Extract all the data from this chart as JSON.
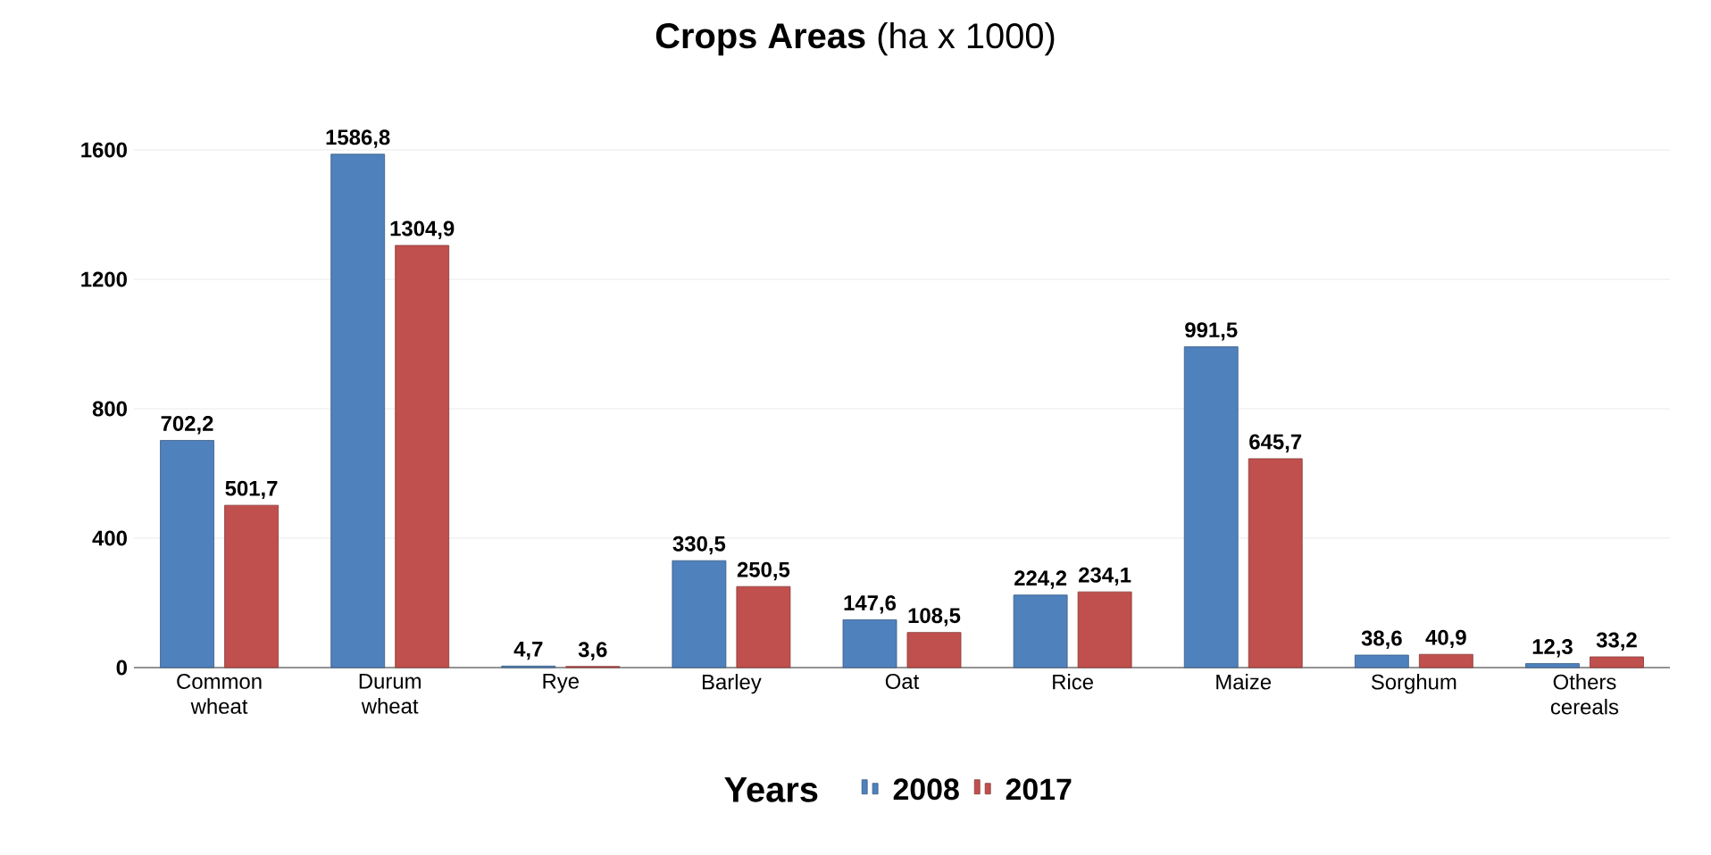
{
  "chart_data": {
    "type": "bar",
    "title": "**Crops Areas** (ha x 1000)",
    "categories": [
      "Common wheat",
      "Durum wheat",
      "Rye",
      "Barley",
      "Oat",
      "Rice",
      "Maize",
      "Sorghum",
      "Others cereals"
    ],
    "series": [
      {
        "name": "2008",
        "color": "#4f81bd",
        "values": [
          702.2,
          1586.8,
          4.7,
          330.5,
          147.6,
          224.2,
          991.5,
          38.6,
          12.3
        ],
        "value_labels": [
          "702,2",
          "1586,8",
          "4,7",
          "330,5",
          "147,6",
          "224,2",
          "991,5",
          "38,6",
          "12,3"
        ]
      },
      {
        "name": "2017",
        "color": "#c0504d",
        "values": [
          501.7,
          1304.9,
          3.6,
          250.5,
          108.5,
          234.1,
          645.7,
          40.9,
          33.2
        ],
        "value_labels": [
          "501,7",
          "1304,9",
          "3,6",
          "250,5",
          "108,5",
          "234,1",
          "645,7",
          "40,9",
          "33,2"
        ]
      }
    ],
    "ylim": [
      0,
      1600
    ],
    "yticks": [
      0,
      400,
      800,
      1200,
      1600
    ],
    "grid": "y",
    "legend": "bottom",
    "legend_title": "Years"
  }
}
